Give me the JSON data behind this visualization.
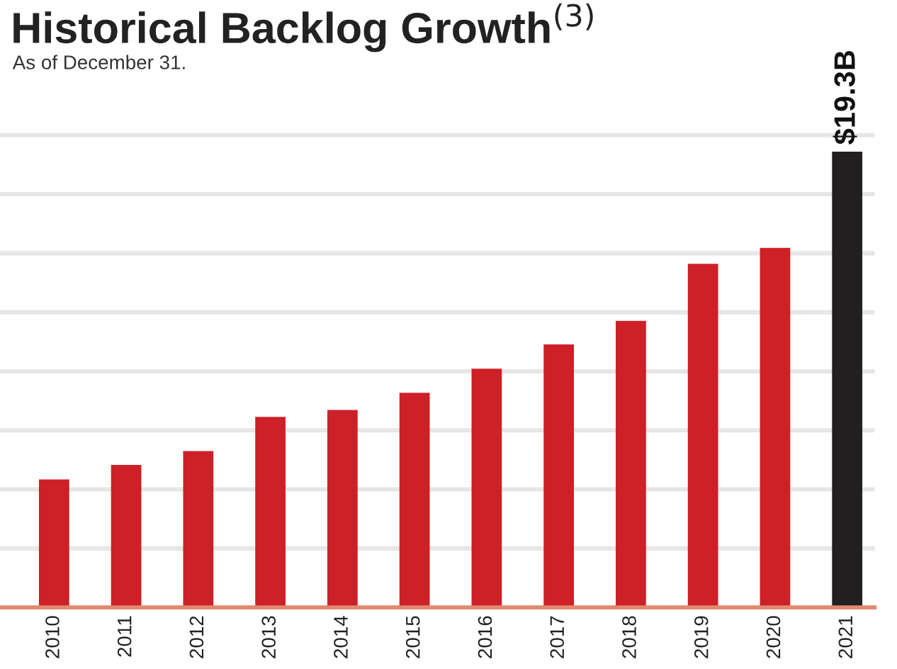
{
  "chart_data": {
    "type": "bar",
    "title": "Historical Backlog Growth$^{(3)}$",
    "subtitle": "As of December 31.",
    "categories": [
      "2010",
      "2011",
      "2012",
      "2013",
      "2014",
      "2015",
      "2016",
      "2017",
      "2018",
      "2019",
      "2020",
      "2021"
    ],
    "values": [
      5.42,
      6.04,
      6.62,
      8.07,
      8.36,
      9.09,
      10.11,
      11.14,
      12.14,
      14.55,
      15.23,
      19.3
    ],
    "colors": [
      "#cd2027",
      "#cd2027",
      "#cd2027",
      "#cd2027",
      "#cd2027",
      "#cd2027",
      "#cd2027",
      "#cd2027",
      "#cd2027",
      "#cd2027",
      "#cd2027",
      "#211f1f"
    ],
    "value_labels": [
      null,
      null,
      null,
      null,
      null,
      null,
      null,
      null,
      null,
      null,
      null,
      "$19.3B"
    ],
    "tick_labels": "x",
    "grid": "y"
  }
}
